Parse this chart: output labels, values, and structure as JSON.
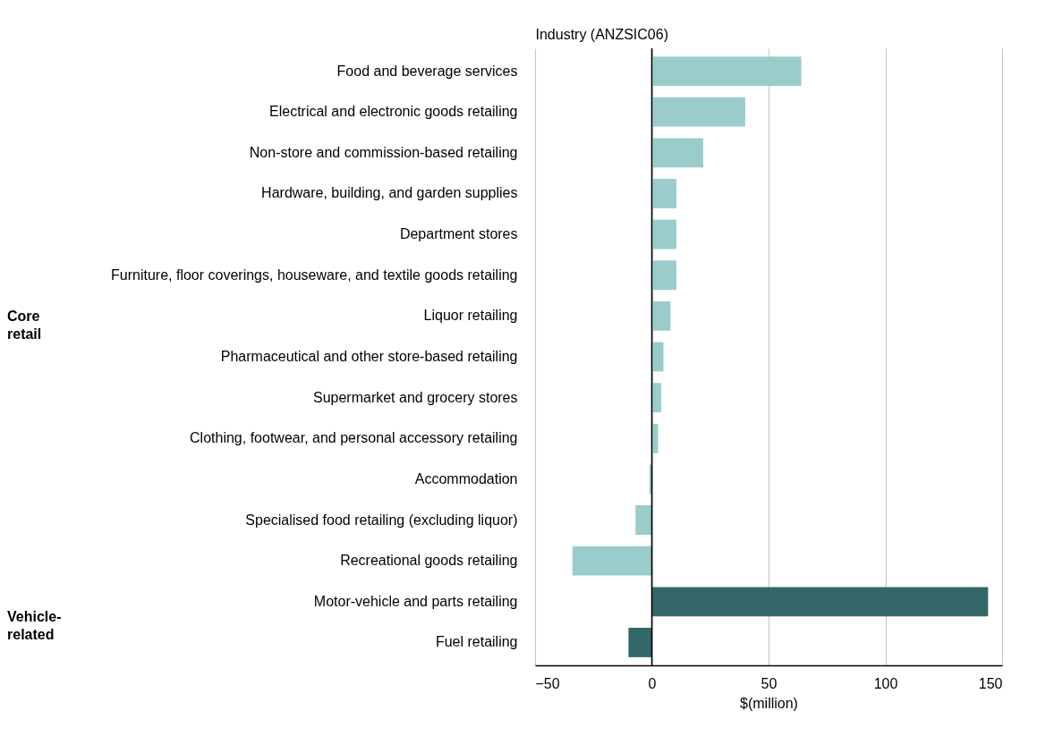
{
  "chart_data": {
    "type": "bar",
    "orientation": "horizontal",
    "ylabel": "Industry (ANZSIC06)",
    "xlabel": "$(million)",
    "categories": [
      "Food and beverage services",
      "Electrical and electronic goods retailing",
      "Non-store and commission-based retailing",
      "Hardware, building, and garden supplies",
      "Department stores",
      "Furniture, floor coverings, houseware, and textile goods retailing",
      "Liquor retailing",
      "Pharmaceutical and other store-based retailing",
      "Supermarket and grocery stores",
      "Clothing, footwear, and personal accessory retailing",
      "Accommodation",
      "Specialised food retailing (excluding liquor)",
      "Recreational goods retailing",
      "Motor-vehicle and parts retailing",
      "Fuel retailing"
    ],
    "values": [
      64,
      40,
      22,
      10.5,
      10.5,
      10.5,
      8,
      5,
      4,
      2.7,
      -1,
      -7,
      -34,
      144,
      -10
    ],
    "colors": [
      "#9bcccc",
      "#9bcccc",
      "#9bcccc",
      "#9bcccc",
      "#9bcccc",
      "#9bcccc",
      "#9bcccc",
      "#9bcccc",
      "#9bcccc",
      "#9bcccc",
      "#9bcccc",
      "#9bcccc",
      "#9bcccc",
      "#346868",
      "#346868"
    ],
    "xlim": [
      -50,
      150
    ],
    "xticks": [
      -50,
      0,
      50,
      100,
      150
    ],
    "grid": "x",
    "annotations": [
      "Core retail",
      "Vehicle-related"
    ]
  }
}
